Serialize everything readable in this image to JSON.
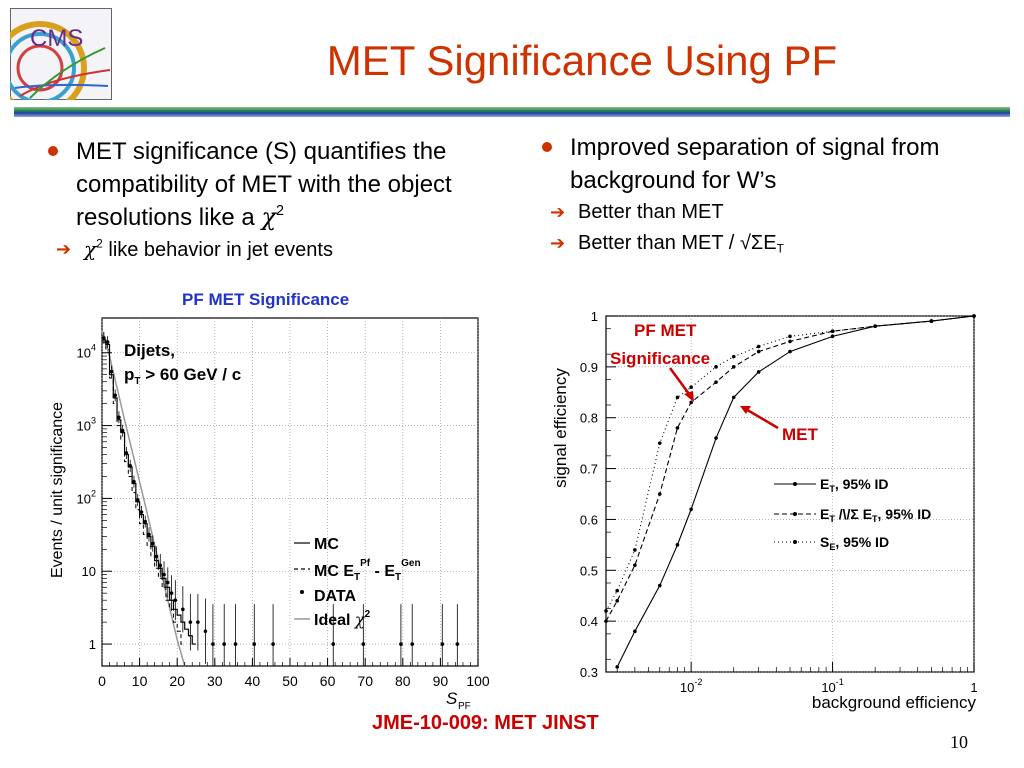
{
  "logo": {
    "text": "CMS"
  },
  "title": "MET Significance Using PF",
  "left_bullets": {
    "main": "MET significance (S) quantifies the compatibility of MET with the object resolutions like a ",
    "main_chi": "χ",
    "main_sup": "2",
    "sub_chi": "χ",
    "sub_sup": "2",
    "sub": " like behavior in jet events"
  },
  "right_bullets": {
    "main": "Improved separation of signal from background for W’s",
    "sub1": "Better than MET",
    "sub2_pre": "Better than MET / ",
    "sub2_sym": "√ΣE",
    "sub2_sub": "T"
  },
  "left_plot": {
    "title": "PF MET Significance",
    "ylabel": "Events / unit significance",
    "xlabel": "S",
    "xlabel_sub": "PF",
    "annotation_line1": "Dijets,",
    "annotation_line2_p": "p",
    "annotation_line2_sub": "T",
    "annotation_line2_rest": " > 60 GeV / c",
    "x_ticks": [
      "0",
      "10",
      "20",
      "30",
      "40",
      "50",
      "60",
      "70",
      "80",
      "90",
      "100"
    ],
    "y_ticks": [
      {
        "base": "1",
        "exp": ""
      },
      {
        "base": "10",
        "exp": ""
      },
      {
        "base": "10",
        "exp": "2"
      },
      {
        "base": "10",
        "exp": "3"
      },
      {
        "base": "10",
        "exp": "4"
      }
    ],
    "legend": {
      "mc": "MC",
      "mc_diff_pre": "MC E",
      "mc_diff_sub1": "T",
      "mc_diff_sup1": "Pf",
      "mc_diff_mid": " - E",
      "mc_diff_sub2": "T",
      "mc_diff_sup2": "Gen",
      "data": "DATA",
      "ideal": "Ideal ",
      "ideal_chi": "χ",
      "ideal_sup": "2"
    }
  },
  "right_plot": {
    "ylabel": "signal efficiency",
    "xlabel": "background efficiency",
    "y_ticks": [
      "0.3",
      "0.4",
      "0.5",
      "0.6",
      "0.7",
      "0.8",
      "0.9",
      "1"
    ],
    "x_ticks": [
      {
        "base": "10",
        "exp": "-2"
      },
      {
        "base": "10",
        "exp": "-1"
      },
      {
        "base": "1",
        "exp": ""
      }
    ],
    "annotation_pf_line1": "PF MET",
    "annotation_pf_line2": "Significance",
    "annotation_met": "MET",
    "legend": {
      "l1_e": "E",
      "l1_sub": "T",
      "l1_rest": ", 95% ID",
      "l2_e": "E",
      "l2_sub": "T",
      "l2_mid": " /\\/Σ E",
      "l2_sub2": "T",
      "l2_rest": ", 95% ID",
      "l3_s": "S",
      "l3_sub": "E",
      "l3_rest": ", 95% ID"
    }
  },
  "reference": "JME-10-009:  MET JINST",
  "page_number": "10",
  "colors": {
    "title": "#cc3300",
    "bullet": "#cc3300",
    "plot_title": "#2233cc",
    "annotation": "#cc0000",
    "rule_top": "#2a8a4a",
    "rule_bottom": "#1f3fa6"
  },
  "icons": {
    "bullet": "filled-circle",
    "sub_bullet": "right-arrow"
  },
  "chart_data": [
    {
      "type": "histogram",
      "title": "PF MET Significance",
      "xlabel": "S_PF",
      "ylabel": "Events / unit significance",
      "xlim": [
        0,
        100
      ],
      "ylim": [
        0.5,
        30000
      ],
      "yscale": "log",
      "grid": true,
      "legend_position": "bottom-right",
      "series": [
        {
          "name": "MC",
          "x": [
            1,
            2,
            3,
            4,
            5,
            6,
            7,
            8,
            9,
            10,
            11,
            12,
            13,
            14,
            15,
            16,
            17,
            18,
            19,
            20,
            21,
            22,
            23,
            24,
            25
          ],
          "values": [
            15000,
            13000,
            5000,
            2400,
            1200,
            800,
            400,
            270,
            160,
            90,
            60,
            45,
            30,
            22,
            14,
            11,
            8,
            6,
            4,
            3,
            2.5,
            2,
            1.6,
            1.3,
            1
          ]
        },
        {
          "name": "MC E_T^Pf - E_T^Gen",
          "x": [
            1,
            2,
            3,
            4,
            5,
            6,
            7,
            8,
            9,
            10,
            11,
            12,
            13,
            14,
            15,
            16,
            17,
            18,
            19,
            20,
            21,
            22
          ],
          "values": [
            14000,
            11000,
            4500,
            2000,
            1000,
            650,
            320,
            200,
            120,
            70,
            45,
            32,
            22,
            16,
            11,
            8,
            6,
            4,
            3,
            2,
            1.5,
            1
          ]
        },
        {
          "name": "DATA",
          "x": [
            1,
            2,
            3,
            4,
            5,
            6,
            7,
            8,
            9,
            10,
            11,
            12,
            13,
            14,
            15,
            16,
            17,
            18,
            19,
            20,
            22,
            24,
            26,
            28,
            30,
            33,
            36,
            41,
            46,
            62,
            70,
            80,
            83,
            91,
            95
          ],
          "values": [
            16000,
            14000,
            5500,
            2600,
            1300,
            850,
            420,
            280,
            170,
            95,
            65,
            48,
            32,
            24,
            16,
            12,
            9,
            7,
            5,
            4,
            3,
            2,
            2,
            1.5,
            1,
            1,
            1,
            1,
            1,
            1,
            1,
            1,
            1,
            1,
            1
          ]
        },
        {
          "name": "Ideal χ2",
          "x": [
            0,
            2,
            4,
            6,
            8,
            10,
            12,
            14,
            16,
            18,
            20,
            22
          ],
          "values": [
            20000,
            9000,
            3300,
            1200,
            450,
            170,
            63,
            23,
            8.5,
            3.1,
            1.15,
            0.42
          ]
        }
      ]
    },
    {
      "type": "line",
      "xlabel": "background efficiency",
      "ylabel": "signal efficiency",
      "xlim": [
        0.0025,
        1
      ],
      "ylim": [
        0.3,
        1.0
      ],
      "xscale": "log",
      "grid": true,
      "legend_position": "bottom-right",
      "series": [
        {
          "name": "E_T, 95% ID",
          "x": [
            0.003,
            0.004,
            0.006,
            0.008,
            0.01,
            0.015,
            0.02,
            0.03,
            0.05,
            0.1,
            0.2,
            0.5,
            1.0
          ],
          "values": [
            0.31,
            0.38,
            0.47,
            0.55,
            0.62,
            0.76,
            0.84,
            0.89,
            0.93,
            0.96,
            0.98,
            0.99,
            1.0
          ]
        },
        {
          "name": "E_T /\\/Σ E_T, 95% ID",
          "x": [
            0.0025,
            0.003,
            0.004,
            0.006,
            0.008,
            0.01,
            0.015,
            0.02,
            0.03,
            0.05,
            0.1,
            0.2,
            0.5,
            1.0
          ],
          "values": [
            0.4,
            0.44,
            0.51,
            0.65,
            0.78,
            0.83,
            0.87,
            0.9,
            0.93,
            0.95,
            0.97,
            0.98,
            0.99,
            1.0
          ]
        },
        {
          "name": "S_E, 95% ID",
          "x": [
            0.0025,
            0.003,
            0.004,
            0.006,
            0.008,
            0.01,
            0.015,
            0.02,
            0.03,
            0.05,
            0.1,
            0.2,
            0.5,
            1.0
          ],
          "values": [
            0.42,
            0.46,
            0.54,
            0.75,
            0.84,
            0.86,
            0.9,
            0.92,
            0.94,
            0.96,
            0.97,
            0.98,
            0.99,
            1.0
          ]
        }
      ]
    }
  ]
}
